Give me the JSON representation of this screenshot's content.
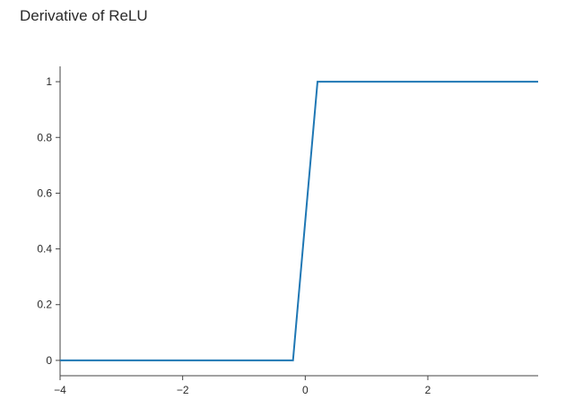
{
  "chart_data": {
    "type": "line",
    "title": "Derivative of ReLU",
    "xlabel": "",
    "ylabel": "",
    "xlim": [
      -4,
      3.8
    ],
    "ylim": [
      -0.055,
      1.055
    ],
    "xticks": [
      -4,
      -2,
      0,
      2
    ],
    "xtick_labels": [
      "−4",
      "−2",
      "0",
      "2"
    ],
    "yticks": [
      0,
      0.2,
      0.4,
      0.6,
      0.8,
      1
    ],
    "ytick_labels": [
      "0",
      "0.2",
      "0.4",
      "0.6",
      "0.8",
      "1"
    ],
    "grid": false,
    "series": [
      {
        "color": "#1f77b4",
        "x": [
          -4,
          -0.2,
          0.2,
          3.8
        ],
        "y": [
          0,
          0,
          1,
          1
        ]
      }
    ]
  }
}
